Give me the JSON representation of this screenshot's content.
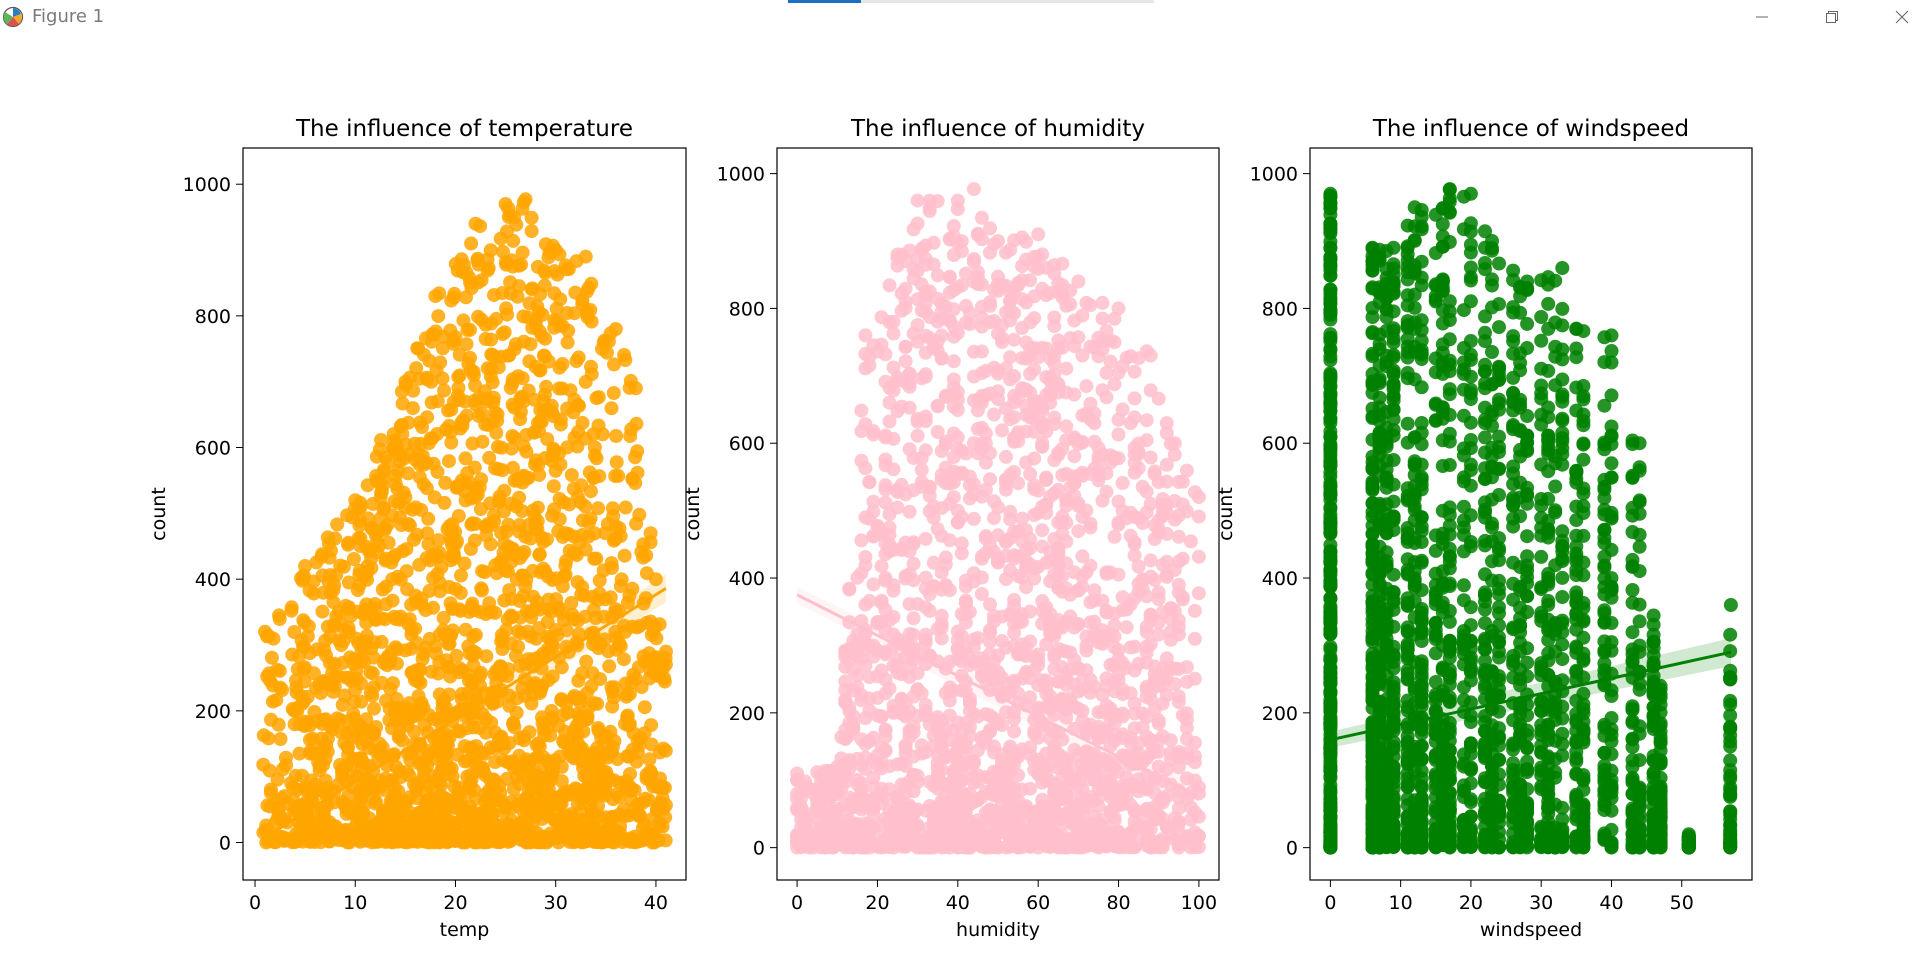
{
  "window": {
    "title": "Figure 1",
    "progress": 0.2,
    "icons": {
      "app": "matplotlib-logo-icon",
      "minimize": "minimize-icon",
      "maximize": "restore-icon",
      "close": "close-icon"
    }
  },
  "chart_data": [
    {
      "type": "scatter",
      "title": "The influence of temperature",
      "xlabel": "temp",
      "ylabel": "count",
      "xlim": [
        -1.2,
        43.0
      ],
      "ylim": [
        -57,
        1055
      ],
      "xticks": [
        0,
        10,
        20,
        30,
        40
      ],
      "yticks": [
        0,
        200,
        400,
        600,
        800,
        1000
      ],
      "color": "#ffa500",
      "grid": false,
      "points_description_summary": {
        "x_range": [
          0.8,
          41
        ],
        "y_range": [
          1,
          977
        ],
        "envelope": [
          [
            1,
            320
          ],
          [
            5,
            420
          ],
          [
            10,
            520
          ],
          [
            15,
            700
          ],
          [
            18,
            830
          ],
          [
            22,
            940
          ],
          [
            25,
            970
          ],
          [
            27,
            977
          ],
          [
            30,
            900
          ],
          [
            33,
            890
          ],
          [
            36,
            780
          ],
          [
            38,
            690
          ],
          [
            40,
            400
          ],
          [
            41,
            290
          ]
        ]
      },
      "regression": {
        "x": [
          0.8,
          41
        ],
        "y": [
          6,
          386
        ]
      }
    },
    {
      "type": "scatter",
      "title": "The influence of humidity",
      "xlabel": "humidity",
      "ylabel": "count",
      "xlim": [
        -5,
        105
      ],
      "ylim": [
        -48,
        1038
      ],
      "xticks": [
        0,
        20,
        40,
        60,
        80,
        100
      ],
      "yticks": [
        0,
        200,
        400,
        600,
        800,
        1000
      ],
      "color": "#ffc0cb",
      "grid": false,
      "points_description_summary": {
        "x_range": [
          0,
          100
        ],
        "y_range": [
          1,
          977
        ],
        "envelope": [
          [
            0,
            110
          ],
          [
            10,
            120
          ],
          [
            17,
            760
          ],
          [
            25,
            880
          ],
          [
            30,
            960
          ],
          [
            40,
            960
          ],
          [
            44,
            977
          ],
          [
            50,
            900
          ],
          [
            60,
            910
          ],
          [
            70,
            840
          ],
          [
            80,
            800
          ],
          [
            88,
            730
          ],
          [
            94,
            600
          ],
          [
            100,
            520
          ]
        ]
      },
      "regression": {
        "x": [
          0,
          100
        ],
        "y": [
          375,
          75
        ]
      }
    },
    {
      "type": "scatter",
      "title": "The influence of windspeed",
      "xlabel": "windspeed",
      "ylabel": "count",
      "xlim": [
        -2.9,
        60.0
      ],
      "ylim": [
        -48,
        1038
      ],
      "xticks": [
        0,
        10,
        20,
        30,
        40,
        50
      ],
      "yticks": [
        0,
        200,
        400,
        600,
        800,
        1000
      ],
      "color": "#008000",
      "grid": false,
      "points_description_summary": {
        "x_categories": [
          0,
          6,
          7,
          8,
          9,
          11,
          12,
          13,
          15,
          16,
          17,
          19,
          20,
          22,
          23,
          24,
          26,
          27,
          28,
          30,
          31,
          32,
          33,
          35,
          36,
          39,
          40,
          43,
          44,
          46,
          47,
          51,
          56.9
        ],
        "y_range": [
          1,
          977
        ],
        "envelope": [
          [
            0,
            970
          ],
          [
            6,
            890
          ],
          [
            9,
            890
          ],
          [
            12,
            950
          ],
          [
            17,
            977
          ],
          [
            20,
            970
          ],
          [
            23,
            900
          ],
          [
            28,
            840
          ],
          [
            33,
            860
          ],
          [
            35,
            770
          ],
          [
            40,
            760
          ],
          [
            44,
            600
          ],
          [
            47,
            240
          ],
          [
            51,
            20
          ],
          [
            57,
            360
          ]
        ]
      },
      "regression": {
        "x": [
          0,
          57
        ],
        "y": [
          160,
          290
        ]
      }
    }
  ]
}
